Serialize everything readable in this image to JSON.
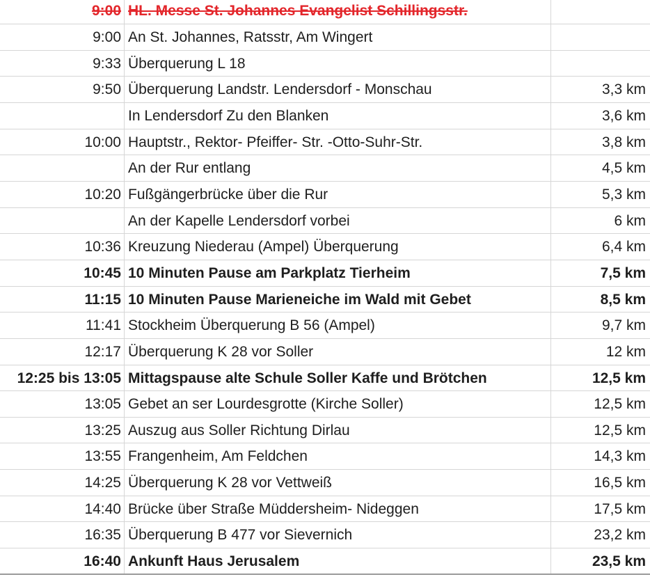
{
  "colors": {
    "cancelled": "#e3262b",
    "text": "#1e1e1e",
    "grid": "#d6d6d6"
  },
  "rows": [
    {
      "time": "9:00",
      "desc": "HL. Messe St. Johannes Evangelist Schillingsstr.",
      "dist": "",
      "style": "cancelled"
    },
    {
      "time": "9:00",
      "desc": "An St. Johannes, Ratsstr, Am Wingert",
      "dist": "",
      "style": ""
    },
    {
      "time": "9:33",
      "desc": "Überquerung L 18",
      "dist": "",
      "style": ""
    },
    {
      "time": "9:50",
      "desc": "Überquerung Landstr. Lendersdorf - Monschau",
      "dist": "3,3 km",
      "style": ""
    },
    {
      "time": "",
      "desc": "In Lendersdorf Zu den Blanken",
      "dist": "3,6 km",
      "style": ""
    },
    {
      "time": "10:00",
      "desc": "Hauptstr., Rektor- Pfeiffer- Str. -Otto-Suhr-Str.",
      "dist": "3,8 km",
      "style": ""
    },
    {
      "time": "",
      "desc": "An der Rur entlang",
      "dist": "4,5 km",
      "style": ""
    },
    {
      "time": "10:20",
      "desc": "Fußgängerbrücke über die Rur",
      "dist": "5,3 km",
      "style": ""
    },
    {
      "time": "",
      "desc": "An der Kapelle Lendersdorf vorbei",
      "dist": "6 km",
      "style": ""
    },
    {
      "time": "10:36",
      "desc": "Kreuzung Niederau (Ampel) Überquerung",
      "dist": "6,4 km",
      "style": ""
    },
    {
      "time": "10:45",
      "desc": "10 Minuten Pause am Parkplatz Tierheim",
      "dist": "7,5 km",
      "style": "bold"
    },
    {
      "time": "11:15",
      "desc": "10 Minuten Pause Marieneiche im Wald mit Gebet",
      "dist": "8,5 km",
      "style": "bold"
    },
    {
      "time": "11:41",
      "desc": "Stockheim Überquerung B 56 (Ampel)",
      "dist": "9,7 km",
      "style": ""
    },
    {
      "time": "12:17",
      "desc": "Überquerung K 28 vor Soller",
      "dist": "12 km",
      "style": ""
    },
    {
      "time": "12:25 bis 13:05",
      "desc": "Mittagspause alte Schule Soller Kaffe und Brötchen",
      "dist": "12,5 km",
      "style": "bold"
    },
    {
      "time": "13:05",
      "desc": "Gebet an ser Lourdesgrotte (Kirche Soller)",
      "dist": "12,5 km",
      "style": ""
    },
    {
      "time": "13:25",
      "desc": "Auszug aus Soller Richtung Dirlau",
      "dist": "12,5 km",
      "style": ""
    },
    {
      "time": "13:55",
      "desc": "Frangenheim, Am Feldchen",
      "dist": "14,3 km",
      "style": ""
    },
    {
      "time": "14:25",
      "desc": "Überquerung K 28 vor Vettweiß",
      "dist": "16,5 km",
      "style": ""
    },
    {
      "time": "14:40",
      "desc": "Brücke über Straße Müddersheim- Nideggen",
      "dist": "17,5 km",
      "style": ""
    },
    {
      "time": "16:35",
      "desc": "Überquerung B 477 vor Sievernich",
      "dist": "23,2 km",
      "style": ""
    },
    {
      "time": "16:40",
      "desc": "Ankunft Haus Jerusalem",
      "dist": "23,5 km",
      "style": "bold"
    }
  ]
}
